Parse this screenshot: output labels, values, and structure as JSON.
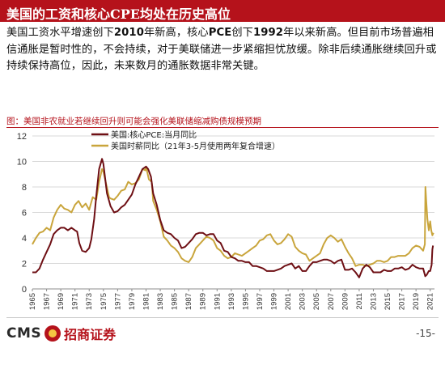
{
  "slide": {
    "title": "美国的工资和核心CPE均处在历史高位",
    "body_parts": [
      {
        "text": "美国工资水平增速创下",
        "bold": false
      },
      {
        "text": "2010",
        "bold": true
      },
      {
        "text": "年新高，核心",
        "bold": false
      },
      {
        "text": "PCE",
        "bold": true
      },
      {
        "text": "创下",
        "bold": false
      },
      {
        "text": "1992",
        "bold": true
      },
      {
        "text": "年以来新高。但目前市场普遍相信通胀是暂时性的，不会持续，对于美联储进一步紧缩担忧放缓。除非后续通胀继续回升或持续保持高位，因此，未来数月的通胀数据非常关键。",
        "bold": false
      }
    ],
    "figure_caption": "图：美国非农就业若继续回升则可能会强化美联储缩减购债规模预期",
    "footer": {
      "logo_latin": "CMS",
      "logo_cn": "招商证券",
      "page": "-15-"
    }
  },
  "colors": {
    "brand": "#b5121b",
    "core_pce": "#6e0f14",
    "wage": "#c9a53c"
  },
  "chart_data": {
    "type": "line",
    "title": "",
    "xlabel": "",
    "ylabel": "",
    "x_range": [
      1965,
      2021.6
    ],
    "ylim": [
      0,
      12
    ],
    "yticks": [
      0,
      2,
      4,
      6,
      8,
      10,
      12
    ],
    "xticks": [
      "1965",
      "1967",
      "1969",
      "1971",
      "1973",
      "1975",
      "1977",
      "1979",
      "1981",
      "1983",
      "1985",
      "1987",
      "1989",
      "1991",
      "1993",
      "1995",
      "1997",
      "1999",
      "2001",
      "2003",
      "2005",
      "2007",
      "2009",
      "2011",
      "2013",
      "2015",
      "2017",
      "2019",
      "2021"
    ],
    "grid": "horizontal",
    "legend_position": "top-left",
    "series": [
      {
        "name": "美国:核心PCE:当月同比",
        "color": "#6e0f14",
        "points": [
          [
            1965,
            1.3
          ],
          [
            1965.5,
            1.3
          ],
          [
            1966,
            1.6
          ],
          [
            1966.5,
            2.3
          ],
          [
            1967,
            2.9
          ],
          [
            1967.5,
            3.5
          ],
          [
            1968,
            4.3
          ],
          [
            1968.5,
            4.6
          ],
          [
            1969,
            4.8
          ],
          [
            1969.5,
            4.8
          ],
          [
            1970,
            4.6
          ],
          [
            1970.5,
            4.8
          ],
          [
            1971,
            4.6
          ],
          [
            1971.3,
            4.5
          ],
          [
            1971.6,
            3.6
          ],
          [
            1972,
            3.0
          ],
          [
            1972.5,
            2.9
          ],
          [
            1973,
            3.2
          ],
          [
            1973.3,
            3.9
          ],
          [
            1973.7,
            5.5
          ],
          [
            1974,
            7.3
          ],
          [
            1974.4,
            9.4
          ],
          [
            1974.8,
            10.2
          ],
          [
            1975,
            9.8
          ],
          [
            1975.5,
            7.5
          ],
          [
            1976,
            6.5
          ],
          [
            1976.5,
            6.0
          ],
          [
            1977,
            6.1
          ],
          [
            1977.5,
            6.4
          ],
          [
            1978,
            6.6
          ],
          [
            1978.5,
            7.0
          ],
          [
            1979,
            7.4
          ],
          [
            1979.5,
            8.2
          ],
          [
            1980,
            8.8
          ],
          [
            1980.5,
            9.4
          ],
          [
            1981,
            9.6
          ],
          [
            1981.3,
            9.4
          ],
          [
            1981.7,
            8.8
          ],
          [
            1982,
            7.5
          ],
          [
            1982.5,
            6.6
          ],
          [
            1983,
            5.4
          ],
          [
            1983.5,
            4.6
          ],
          [
            1984,
            4.4
          ],
          [
            1984.5,
            4.3
          ],
          [
            1985,
            4.0
          ],
          [
            1985.5,
            3.8
          ],
          [
            1986,
            3.2
          ],
          [
            1986.5,
            3.3
          ],
          [
            1987,
            3.6
          ],
          [
            1987.5,
            3.9
          ],
          [
            1988,
            4.3
          ],
          [
            1988.5,
            4.4
          ],
          [
            1989,
            4.4
          ],
          [
            1989.5,
            4.2
          ],
          [
            1990,
            4.3
          ],
          [
            1990.5,
            4.3
          ],
          [
            1991,
            3.8
          ],
          [
            1991.5,
            3.6
          ],
          [
            1992,
            3.0
          ],
          [
            1992.5,
            2.9
          ],
          [
            1993,
            2.5
          ],
          [
            1993.5,
            2.4
          ],
          [
            1994,
            2.2
          ],
          [
            1994.5,
            2.2
          ],
          [
            1995,
            2.1
          ],
          [
            1995.5,
            2.1
          ],
          [
            1996,
            1.8
          ],
          [
            1996.5,
            1.8
          ],
          [
            1997,
            1.7
          ],
          [
            1997.5,
            1.6
          ],
          [
            1998,
            1.4
          ],
          [
            1998.5,
            1.4
          ],
          [
            1999,
            1.4
          ],
          [
            1999.5,
            1.5
          ],
          [
            2000,
            1.6
          ],
          [
            2000.5,
            1.8
          ],
          [
            2001,
            1.9
          ],
          [
            2001.5,
            2.0
          ],
          [
            2002,
            1.6
          ],
          [
            2002.5,
            1.8
          ],
          [
            2003,
            1.4
          ],
          [
            2003.5,
            1.4
          ],
          [
            2004,
            1.8
          ],
          [
            2004.5,
            2.1
          ],
          [
            2005,
            2.1
          ],
          [
            2005.5,
            2.2
          ],
          [
            2006,
            2.3
          ],
          [
            2006.5,
            2.3
          ],
          [
            2007,
            2.2
          ],
          [
            2007.5,
            2.0
          ],
          [
            2008,
            2.2
          ],
          [
            2008.5,
            2.3
          ],
          [
            2009,
            1.5
          ],
          [
            2009.5,
            1.5
          ],
          [
            2010,
            1.6
          ],
          [
            2010.5,
            1.3
          ],
          [
            2011,
            0.9
          ],
          [
            2011.5,
            1.6
          ],
          [
            2012,
            1.9
          ],
          [
            2012.5,
            1.7
          ],
          [
            2013,
            1.3
          ],
          [
            2013.5,
            1.3
          ],
          [
            2014,
            1.3
          ],
          [
            2014.5,
            1.5
          ],
          [
            2015,
            1.4
          ],
          [
            2015.5,
            1.4
          ],
          [
            2016,
            1.6
          ],
          [
            2016.5,
            1.6
          ],
          [
            2017,
            1.7
          ],
          [
            2017.5,
            1.5
          ],
          [
            2018,
            1.6
          ],
          [
            2018.5,
            1.9
          ],
          [
            2019,
            1.7
          ],
          [
            2019.5,
            1.6
          ],
          [
            2020,
            1.6
          ],
          [
            2020.3,
            1.0
          ],
          [
            2020.5,
            1.1
          ],
          [
            2020.8,
            1.4
          ],
          [
            2021,
            1.4
          ],
          [
            2021.2,
            1.9
          ],
          [
            2021.3,
            3.1
          ],
          [
            2021.4,
            3.4
          ]
        ]
      },
      {
        "name": "美国时薪同比（21年3-5月使用两年复合增速）",
        "color": "#c9a53c",
        "points": [
          [
            1965,
            3.5
          ],
          [
            1965.5,
            4.0
          ],
          [
            1966,
            4.4
          ],
          [
            1966.5,
            4.5
          ],
          [
            1967,
            4.8
          ],
          [
            1967.5,
            4.6
          ],
          [
            1968,
            5.6
          ],
          [
            1968.5,
            6.2
          ],
          [
            1969,
            6.6
          ],
          [
            1969.5,
            6.3
          ],
          [
            1970,
            6.2
          ],
          [
            1970.5,
            6.0
          ],
          [
            1971,
            6.6
          ],
          [
            1971.5,
            6.9
          ],
          [
            1972,
            6.4
          ],
          [
            1972.5,
            6.7
          ],
          [
            1973,
            6.2
          ],
          [
            1973.5,
            7.2
          ],
          [
            1974,
            7.0
          ],
          [
            1974.4,
            8.4
          ],
          [
            1974.8,
            9.4
          ],
          [
            1975,
            9.2
          ],
          [
            1975.4,
            8.2
          ],
          [
            1975.8,
            7.2
          ],
          [
            1976,
            7.1
          ],
          [
            1976.5,
            7.0
          ],
          [
            1977,
            7.3
          ],
          [
            1977.5,
            7.7
          ],
          [
            1978,
            7.8
          ],
          [
            1978.5,
            8.4
          ],
          [
            1979,
            8.2
          ],
          [
            1979.5,
            8.3
          ],
          [
            1980,
            8.6
          ],
          [
            1980.5,
            9.4
          ],
          [
            1980.9,
            9.3
          ],
          [
            1981,
            9.6
          ],
          [
            1981.4,
            8.6
          ],
          [
            1981.8,
            8.4
          ],
          [
            1982,
            6.9
          ],
          [
            1982.5,
            6.2
          ],
          [
            1983,
            5.3
          ],
          [
            1983.5,
            4.1
          ],
          [
            1984,
            3.8
          ],
          [
            1984.5,
            3.4
          ],
          [
            1985,
            3.2
          ],
          [
            1985.5,
            2.9
          ],
          [
            1986,
            2.4
          ],
          [
            1986.5,
            2.2
          ],
          [
            1987,
            2.1
          ],
          [
            1987.5,
            2.5
          ],
          [
            1988,
            3.2
          ],
          [
            1988.5,
            3.5
          ],
          [
            1989,
            3.8
          ],
          [
            1989.5,
            4.1
          ],
          [
            1990,
            4.0
          ],
          [
            1990.5,
            3.8
          ],
          [
            1991,
            3.2
          ],
          [
            1991.5,
            3.0
          ],
          [
            1992,
            2.6
          ],
          [
            1992.5,
            2.4
          ],
          [
            1993,
            2.5
          ],
          [
            1993.5,
            2.8
          ],
          [
            1994,
            2.7
          ],
          [
            1994.5,
            2.6
          ],
          [
            1995,
            2.8
          ],
          [
            1995.5,
            3.0
          ],
          [
            1996,
            3.2
          ],
          [
            1996.5,
            3.4
          ],
          [
            1997,
            3.8
          ],
          [
            1997.5,
            3.9
          ],
          [
            1998,
            4.2
          ],
          [
            1998.5,
            4.3
          ],
          [
            1999,
            3.8
          ],
          [
            1999.5,
            3.5
          ],
          [
            2000,
            3.6
          ],
          [
            2000.5,
            3.9
          ],
          [
            2001,
            4.3
          ],
          [
            2001.5,
            4.1
          ],
          [
            2002,
            3.3
          ],
          [
            2002.5,
            3.0
          ],
          [
            2003,
            2.8
          ],
          [
            2003.5,
            2.7
          ],
          [
            2004,
            2.2
          ],
          [
            2004.5,
            2.4
          ],
          [
            2005,
            2.6
          ],
          [
            2005.5,
            2.8
          ],
          [
            2006,
            3.5
          ],
          [
            2006.5,
            4.0
          ],
          [
            2007,
            4.2
          ],
          [
            2007.5,
            4.0
          ],
          [
            2008,
            3.7
          ],
          [
            2008.5,
            3.9
          ],
          [
            2009,
            3.3
          ],
          [
            2009.5,
            2.8
          ],
          [
            2010,
            2.4
          ],
          [
            2010.5,
            1.8
          ],
          [
            2011,
            1.9
          ],
          [
            2011.5,
            1.9
          ],
          [
            2012,
            1.8
          ],
          [
            2012.5,
            1.9
          ],
          [
            2013,
            2.0
          ],
          [
            2013.5,
            2.2
          ],
          [
            2014,
            2.2
          ],
          [
            2014.5,
            2.1
          ],
          [
            2015,
            2.2
          ],
          [
            2015.5,
            2.5
          ],
          [
            2016,
            2.5
          ],
          [
            2016.5,
            2.6
          ],
          [
            2017,
            2.6
          ],
          [
            2017.5,
            2.6
          ],
          [
            2018,
            2.8
          ],
          [
            2018.5,
            3.2
          ],
          [
            2019,
            3.4
          ],
          [
            2019.5,
            3.3
          ],
          [
            2020,
            3.0
          ],
          [
            2020.25,
            3.5
          ],
          [
            2020.33,
            8.0
          ],
          [
            2020.45,
            6.8
          ],
          [
            2020.6,
            5.5
          ],
          [
            2020.8,
            4.6
          ],
          [
            2021,
            5.3
          ],
          [
            2021.15,
            4.6
          ],
          [
            2021.3,
            4.2
          ],
          [
            2021.45,
            4.4
          ]
        ]
      }
    ]
  }
}
